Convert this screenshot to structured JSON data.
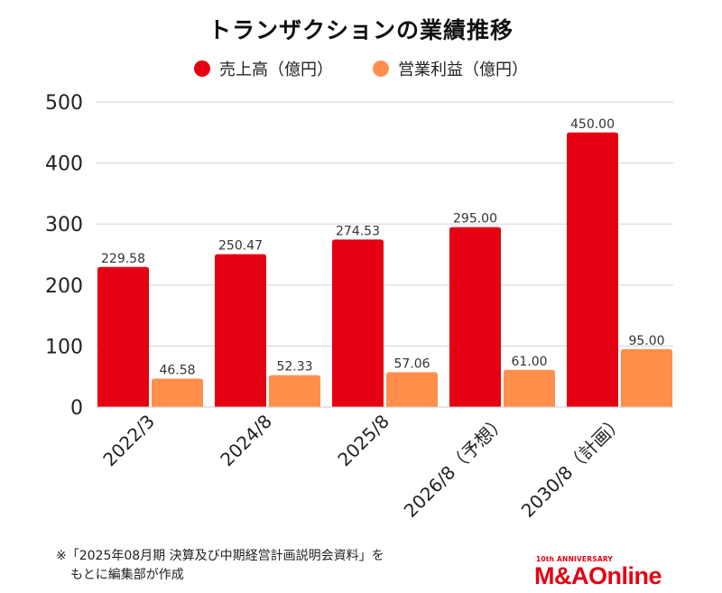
{
  "chart_data": {
    "type": "bar",
    "title": "トランザクションの業績推移",
    "categories": [
      "2022/3",
      "2024/8",
      "2025/8",
      "2026/8（予想）",
      "2030/8（計画）"
    ],
    "series": [
      {
        "name": "売上高（億円）",
        "color": "#e50012",
        "values": [
          229.58,
          250.47,
          274.53,
          295.0,
          450.0
        ],
        "labels": [
          "229.58",
          "250.47",
          "274.53",
          "295.00",
          "450.00"
        ]
      },
      {
        "name": "営業利益（億円）",
        "color": "#ff8f4a",
        "values": [
          46.58,
          52.33,
          57.06,
          61.0,
          95.0
        ],
        "labels": [
          "46.58",
          "52.33",
          "57.06",
          "61.00",
          "95.00"
        ]
      }
    ],
    "yticks": [
      "0",
      "100",
      "200",
      "300",
      "400",
      "500"
    ],
    "ytick_values": [
      0,
      100,
      200,
      300,
      400,
      500
    ],
    "ylim": [
      0,
      500
    ],
    "xlabel": "",
    "ylabel": "",
    "grid": true,
    "legend": "top-center"
  },
  "footnote": {
    "line1": "※「2025年08月期 決算及び中期経営計画説明会資料」を",
    "line2": "もとに編集部が作成"
  },
  "logo": {
    "sub": "10th ANNIVERSARY",
    "main": "M&AOnline"
  }
}
